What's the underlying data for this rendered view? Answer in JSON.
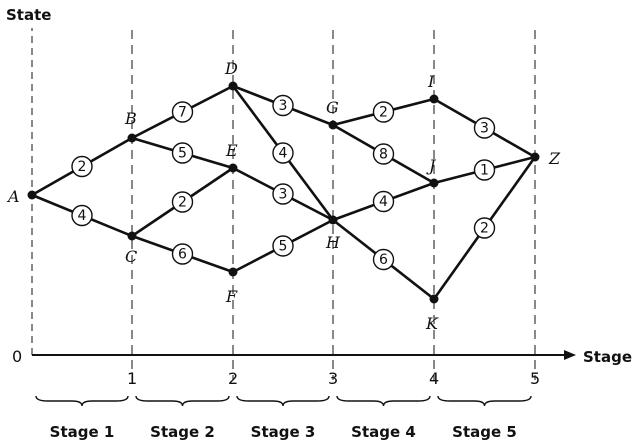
{
  "axis": {
    "y_title": "State",
    "x_title": "Stage",
    "origin": "0",
    "stage_ticks": [
      "1",
      "2",
      "3",
      "4",
      "5"
    ]
  },
  "nodes": [
    {
      "id": "A",
      "label": "A",
      "stage": 0
    },
    {
      "id": "B",
      "label": "B",
      "stage": 1
    },
    {
      "id": "C",
      "label": "C",
      "stage": 1
    },
    {
      "id": "D",
      "label": "D",
      "stage": 2
    },
    {
      "id": "E",
      "label": "E",
      "stage": 2
    },
    {
      "id": "F",
      "label": "F",
      "stage": 2
    },
    {
      "id": "G",
      "label": "G",
      "stage": 3
    },
    {
      "id": "H",
      "label": "H",
      "stage": 3
    },
    {
      "id": "I",
      "label": "I",
      "stage": 4
    },
    {
      "id": "J",
      "label": "J",
      "stage": 4
    },
    {
      "id": "K",
      "label": "K",
      "stage": 4
    },
    {
      "id": "Z",
      "label": "Z",
      "stage": 5
    }
  ],
  "edges": [
    {
      "from": "A",
      "to": "B",
      "weight": "2"
    },
    {
      "from": "A",
      "to": "C",
      "weight": "4"
    },
    {
      "from": "B",
      "to": "D",
      "weight": "7"
    },
    {
      "from": "B",
      "to": "E",
      "weight": "5"
    },
    {
      "from": "C",
      "to": "E",
      "weight": "2"
    },
    {
      "from": "C",
      "to": "F",
      "weight": "6"
    },
    {
      "from": "D",
      "to": "G",
      "weight": "3"
    },
    {
      "from": "D",
      "to": "H",
      "weight": "4"
    },
    {
      "from": "E",
      "to": "H",
      "weight": "3"
    },
    {
      "from": "F",
      "to": "H",
      "weight": "5"
    },
    {
      "from": "G",
      "to": "I",
      "weight": "2"
    },
    {
      "from": "G",
      "to": "J",
      "weight": "8"
    },
    {
      "from": "H",
      "to": "J",
      "weight": "4"
    },
    {
      "from": "H",
      "to": "K",
      "weight": "6"
    },
    {
      "from": "I",
      "to": "Z",
      "weight": "3"
    },
    {
      "from": "J",
      "to": "Z",
      "weight": "1"
    },
    {
      "from": "K",
      "to": "Z",
      "weight": "2"
    }
  ],
  "stages": [
    "Stage 1",
    "Stage 2",
    "Stage 3",
    "Stage 4",
    "Stage 5"
  ]
}
